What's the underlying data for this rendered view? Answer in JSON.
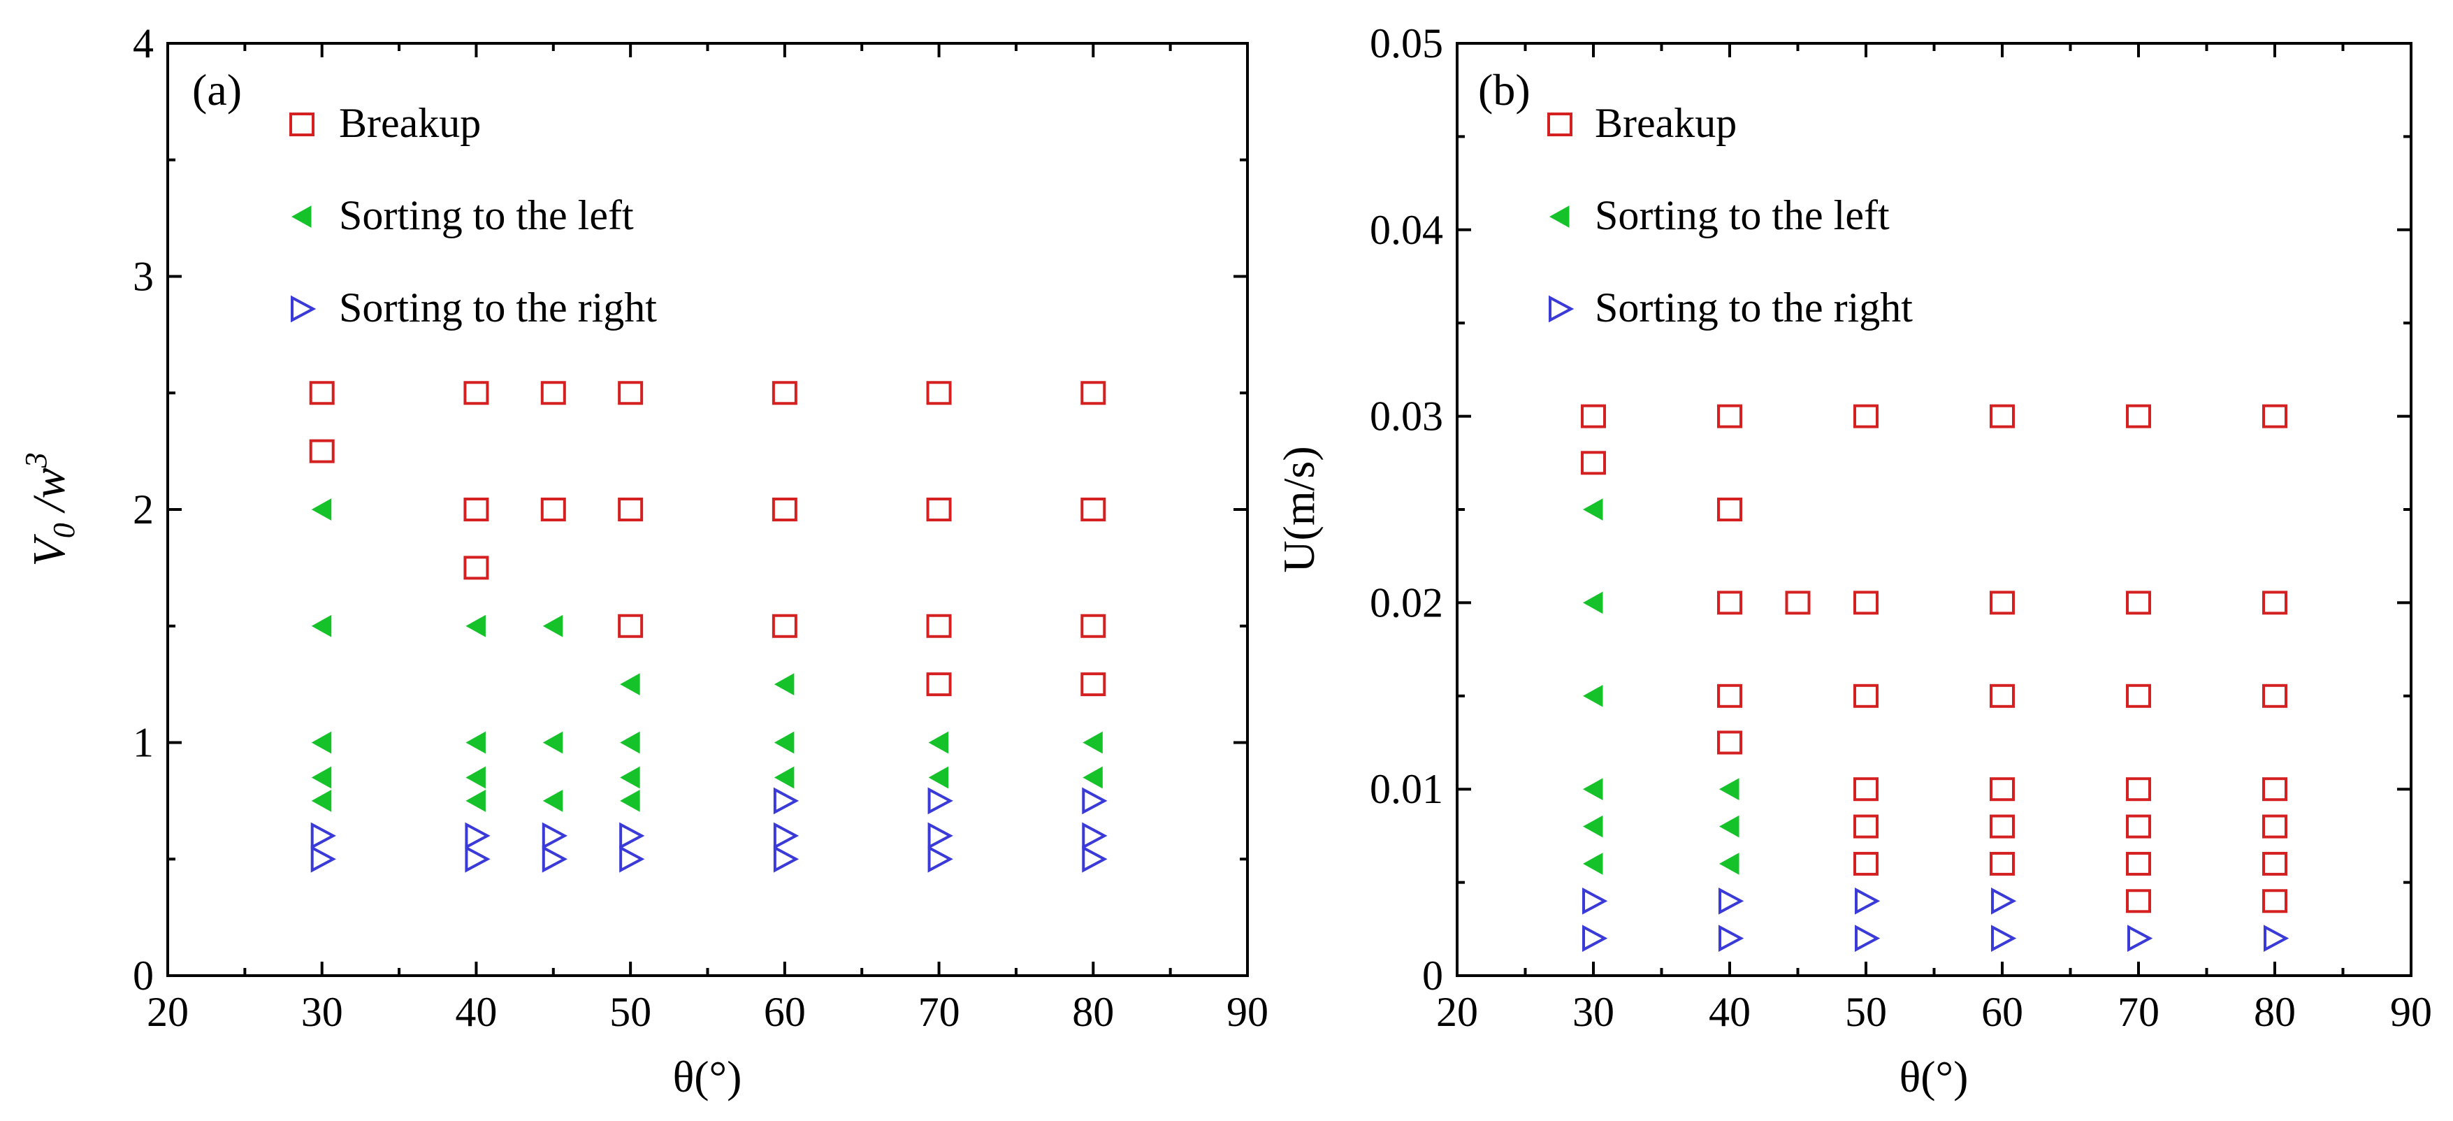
{
  "figure": {
    "background": "#ffffff"
  },
  "styles": {
    "breakup_color": "#d42020",
    "left_color": "#16c22a",
    "right_color": "#3a3ad8"
  },
  "chart_data": [
    {
      "type": "scatter",
      "panel_label": "(a)",
      "xlabel": "θ(°)",
      "ylabel_main": "V",
      "ylabel_sub": "0",
      "ylabel_mid": " /w",
      "ylabel_sup": "3",
      "xlim": [
        20,
        90
      ],
      "ylim": [
        0,
        4
      ],
      "xticks": [
        20,
        30,
        40,
        50,
        60,
        70,
        80,
        90
      ],
      "xtick_labels": [
        "20",
        "30",
        "40",
        "50",
        "60",
        "70",
        "80",
        "90"
      ],
      "yticks": [
        0,
        1,
        2,
        3,
        4
      ],
      "ytick_labels": [
        "0",
        "1",
        "2",
        "3",
        "4"
      ],
      "legend_position": "top-left",
      "series": [
        {
          "name": "Breakup",
          "marker": "open-square",
          "points": [
            [
              30,
              2.5
            ],
            [
              30,
              2.25
            ],
            [
              40,
              2.5
            ],
            [
              40,
              2.0
            ],
            [
              40,
              1.75
            ],
            [
              45,
              2.5
            ],
            [
              45,
              2.0
            ],
            [
              50,
              2.5
            ],
            [
              50,
              2.0
            ],
            [
              50,
              1.5
            ],
            [
              60,
              2.5
            ],
            [
              60,
              2.0
            ],
            [
              60,
              1.5
            ],
            [
              70,
              2.5
            ],
            [
              70,
              2.0
            ],
            [
              70,
              1.5
            ],
            [
              70,
              1.25
            ],
            [
              80,
              2.5
            ],
            [
              80,
              2.0
            ],
            [
              80,
              1.5
            ],
            [
              80,
              1.25
            ]
          ]
        },
        {
          "name": "Sorting to the left",
          "marker": "filled-left-triangle",
          "points": [
            [
              30,
              2.0
            ],
            [
              30,
              1.5
            ],
            [
              30,
              1.0
            ],
            [
              30,
              0.85
            ],
            [
              30,
              0.75
            ],
            [
              40,
              1.5
            ],
            [
              40,
              1.0
            ],
            [
              40,
              0.85
            ],
            [
              40,
              0.75
            ],
            [
              45,
              1.5
            ],
            [
              45,
              1.0
            ],
            [
              45,
              0.75
            ],
            [
              50,
              1.25
            ],
            [
              50,
              1.0
            ],
            [
              50,
              0.85
            ],
            [
              50,
              0.75
            ],
            [
              60,
              1.25
            ],
            [
              60,
              1.0
            ],
            [
              60,
              0.85
            ],
            [
              70,
              1.0
            ],
            [
              70,
              0.85
            ],
            [
              80,
              1.0
            ],
            [
              80,
              0.85
            ]
          ]
        },
        {
          "name": "Sorting to the right",
          "marker": "open-right-triangle",
          "points": [
            [
              30,
              0.6
            ],
            [
              30,
              0.5
            ],
            [
              40,
              0.6
            ],
            [
              40,
              0.5
            ],
            [
              45,
              0.6
            ],
            [
              45,
              0.5
            ],
            [
              50,
              0.6
            ],
            [
              50,
              0.5
            ],
            [
              60,
              0.75
            ],
            [
              60,
              0.6
            ],
            [
              60,
              0.5
            ],
            [
              70,
              0.75
            ],
            [
              70,
              0.6
            ],
            [
              70,
              0.5
            ],
            [
              80,
              0.75
            ],
            [
              80,
              0.6
            ],
            [
              80,
              0.5
            ]
          ]
        }
      ]
    },
    {
      "type": "scatter",
      "panel_label": "(b)",
      "xlabel": "θ(°)",
      "ylabel": "U(m/s)",
      "xlim": [
        20,
        90
      ],
      "ylim": [
        0,
        0.05
      ],
      "xticks": [
        20,
        30,
        40,
        50,
        60,
        70,
        80,
        90
      ],
      "xtick_labels": [
        "20",
        "30",
        "40",
        "50",
        "60",
        "70",
        "80",
        "90"
      ],
      "yticks": [
        0,
        0.01,
        0.02,
        0.03,
        0.04,
        0.05
      ],
      "ytick_labels": [
        "0",
        "0.01",
        "0.02",
        "0.03",
        "0.04",
        "0.05"
      ],
      "legend_position": "top-left",
      "series": [
        {
          "name": "Breakup",
          "marker": "open-square",
          "points": [
            [
              30,
              0.03
            ],
            [
              30,
              0.0275
            ],
            [
              40,
              0.03
            ],
            [
              40,
              0.025
            ],
            [
              40,
              0.02
            ],
            [
              40,
              0.015
            ],
            [
              40,
              0.0125
            ],
            [
              45,
              0.02
            ],
            [
              50,
              0.03
            ],
            [
              50,
              0.02
            ],
            [
              50,
              0.015
            ],
            [
              50,
              0.01
            ],
            [
              50,
              0.008
            ],
            [
              50,
              0.006
            ],
            [
              60,
              0.03
            ],
            [
              60,
              0.02
            ],
            [
              60,
              0.015
            ],
            [
              60,
              0.01
            ],
            [
              60,
              0.008
            ],
            [
              60,
              0.006
            ],
            [
              70,
              0.03
            ],
            [
              70,
              0.02
            ],
            [
              70,
              0.015
            ],
            [
              70,
              0.01
            ],
            [
              70,
              0.008
            ],
            [
              70,
              0.006
            ],
            [
              70,
              0.004
            ],
            [
              80,
              0.03
            ],
            [
              80,
              0.02
            ],
            [
              80,
              0.015
            ],
            [
              80,
              0.01
            ],
            [
              80,
              0.008
            ],
            [
              80,
              0.006
            ],
            [
              80,
              0.004
            ]
          ]
        },
        {
          "name": "Sorting to the left",
          "marker": "filled-left-triangle",
          "points": [
            [
              30,
              0.025
            ],
            [
              30,
              0.02
            ],
            [
              30,
              0.015
            ],
            [
              30,
              0.01
            ],
            [
              30,
              0.008
            ],
            [
              30,
              0.006
            ],
            [
              40,
              0.01
            ],
            [
              40,
              0.008
            ],
            [
              40,
              0.006
            ]
          ]
        },
        {
          "name": "Sorting to the right",
          "marker": "open-right-triangle",
          "points": [
            [
              30,
              0.004
            ],
            [
              30,
              0.002
            ],
            [
              40,
              0.004
            ],
            [
              40,
              0.002
            ],
            [
              50,
              0.004
            ],
            [
              50,
              0.002
            ],
            [
              60,
              0.004
            ],
            [
              60,
              0.002
            ],
            [
              70,
              0.002
            ],
            [
              80,
              0.002
            ]
          ]
        }
      ]
    }
  ]
}
